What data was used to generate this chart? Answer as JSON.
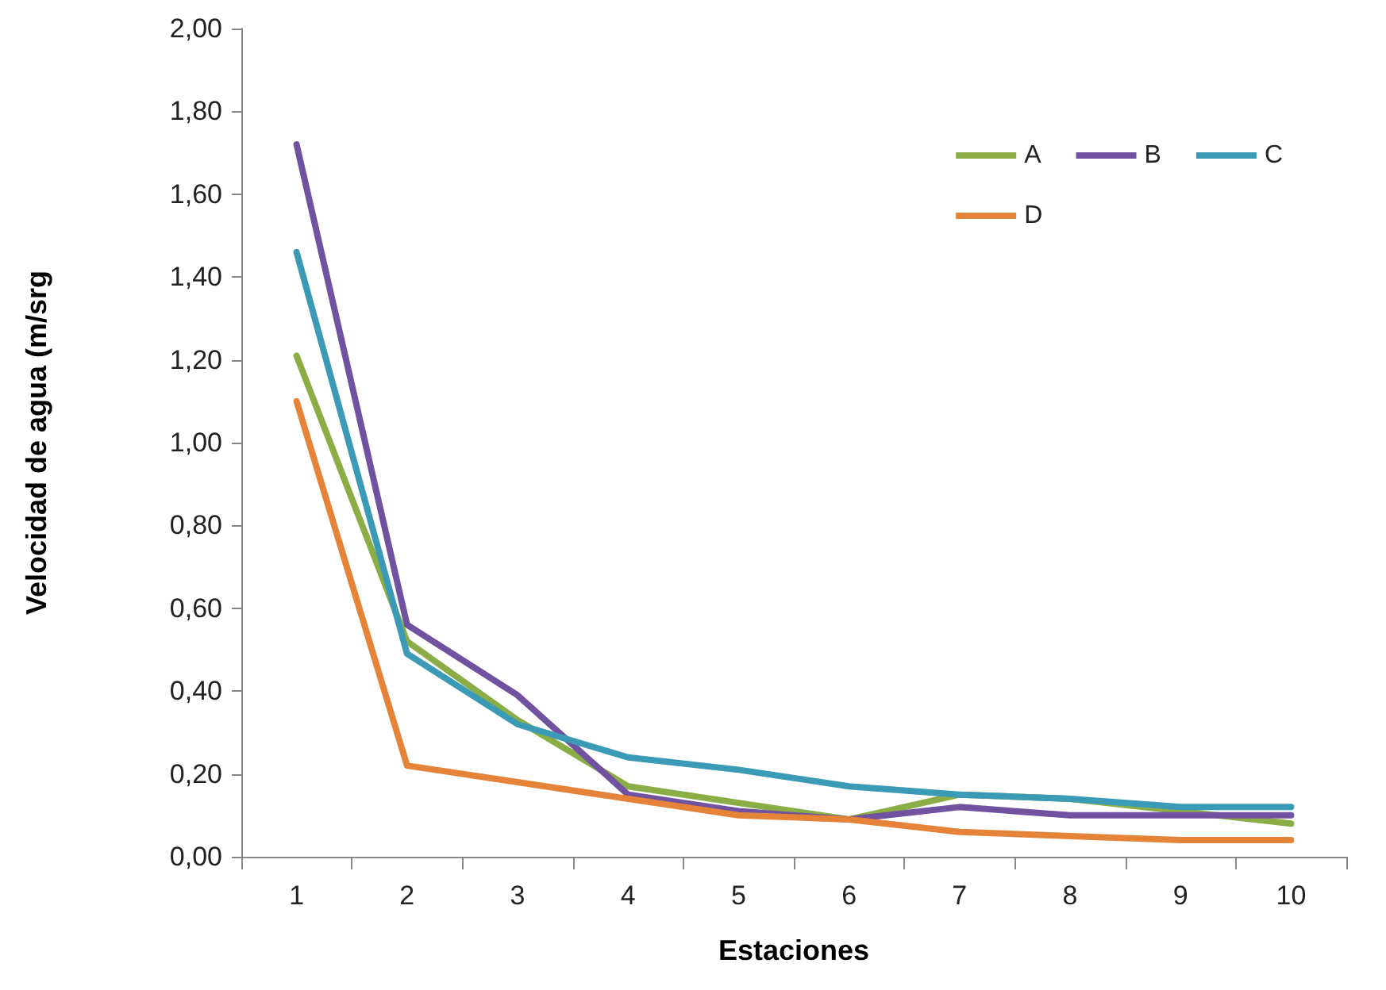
{
  "chart_data": {
    "type": "line",
    "xlabel": "Estaciones",
    "ylabel": "Velocidad de agua (m/srg",
    "categories": [
      "1",
      "2",
      "3",
      "4",
      "5",
      "6",
      "7",
      "8",
      "9",
      "10"
    ],
    "series": [
      {
        "name": "A",
        "color": "#8aad45",
        "values": [
          1.21,
          0.52,
          0.33,
          0.17,
          0.13,
          0.09,
          0.15,
          0.14,
          0.11,
          0.08
        ]
      },
      {
        "name": "B",
        "color": "#7052a0",
        "values": [
          1.72,
          0.56,
          0.39,
          0.15,
          0.11,
          0.09,
          0.12,
          0.1,
          0.1,
          0.1
        ]
      },
      {
        "name": "C",
        "color": "#3b9bb7",
        "values": [
          1.46,
          0.49,
          0.32,
          0.24,
          0.21,
          0.17,
          0.15,
          0.14,
          0.12,
          0.12
        ]
      },
      {
        "name": "D",
        "color": "#e58438",
        "values": [
          1.1,
          0.22,
          0.18,
          0.14,
          0.1,
          0.09,
          0.06,
          0.05,
          0.04,
          0.04
        ]
      }
    ],
    "ylim": [
      0,
      2
    ],
    "yticks": [
      {
        "value": 0,
        "label": "0,00"
      },
      {
        "value": 0.2,
        "label": "0,20"
      },
      {
        "value": 0.4,
        "label": "0,40"
      },
      {
        "value": 0.6,
        "label": "0,60"
      },
      {
        "value": 0.8,
        "label": "0,80"
      },
      {
        "value": 1,
        "label": "1,00"
      },
      {
        "value": 1.2,
        "label": "1,20"
      },
      {
        "value": 1.4,
        "label": "1,40"
      },
      {
        "value": 1.6,
        "label": "1,60"
      },
      {
        "value": 1.8,
        "label": "1,80"
      },
      {
        "value": 2,
        "label": "2,00"
      }
    ],
    "grid": false,
    "legend": "top right",
    "marker": "none",
    "line_style": "solid"
  }
}
